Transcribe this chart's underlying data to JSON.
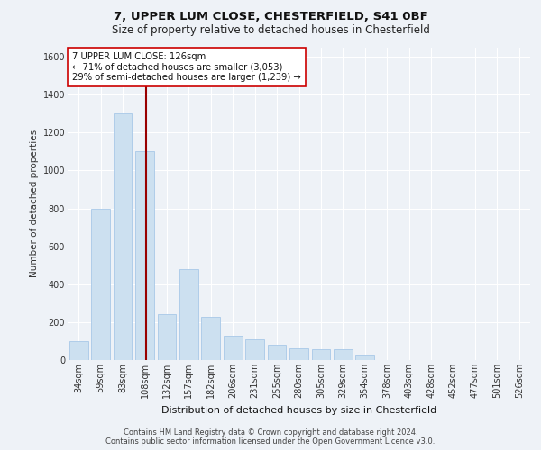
{
  "title_line1": "7, UPPER LUM CLOSE, CHESTERFIELD, S41 0BF",
  "title_line2": "Size of property relative to detached houses in Chesterfield",
  "xlabel": "Distribution of detached houses by size in Chesterfield",
  "ylabel": "Number of detached properties",
  "categories": [
    "34sqm",
    "59sqm",
    "83sqm",
    "108sqm",
    "132sqm",
    "157sqm",
    "182sqm",
    "206sqm",
    "231sqm",
    "255sqm",
    "280sqm",
    "305sqm",
    "329sqm",
    "354sqm",
    "378sqm",
    "403sqm",
    "428sqm",
    "452sqm",
    "477sqm",
    "501sqm",
    "526sqm"
  ],
  "values": [
    100,
    800,
    1300,
    1100,
    240,
    480,
    230,
    130,
    110,
    80,
    60,
    55,
    55,
    30,
    0,
    0,
    0,
    0,
    0,
    0,
    0
  ],
  "bar_color": "#cce0f0",
  "bar_edge_color": "#a8c8e8",
  "vline_color": "#990000",
  "vline_x": 3.07,
  "annotation_text": "7 UPPER LUM CLOSE: 126sqm\n← 71% of detached houses are smaller (3,053)\n29% of semi-detached houses are larger (1,239) →",
  "annotation_box_color": "#ffffff",
  "annotation_box_edge_color": "#cc0000",
  "ylim": [
    0,
    1650
  ],
  "yticks": [
    0,
    200,
    400,
    600,
    800,
    1000,
    1200,
    1400,
    1600
  ],
  "footer_line1": "Contains HM Land Registry data © Crown copyright and database right 2024.",
  "footer_line2": "Contains public sector information licensed under the Open Government Licence v3.0.",
  "background_color": "#eef2f7",
  "grid_color": "#ffffff",
  "title1_fontsize": 9.5,
  "title2_fontsize": 8.5,
  "ylabel_fontsize": 7.5,
  "xlabel_fontsize": 8.0,
  "tick_fontsize": 7.0,
  "annot_fontsize": 7.2,
  "footer_fontsize": 6.0
}
